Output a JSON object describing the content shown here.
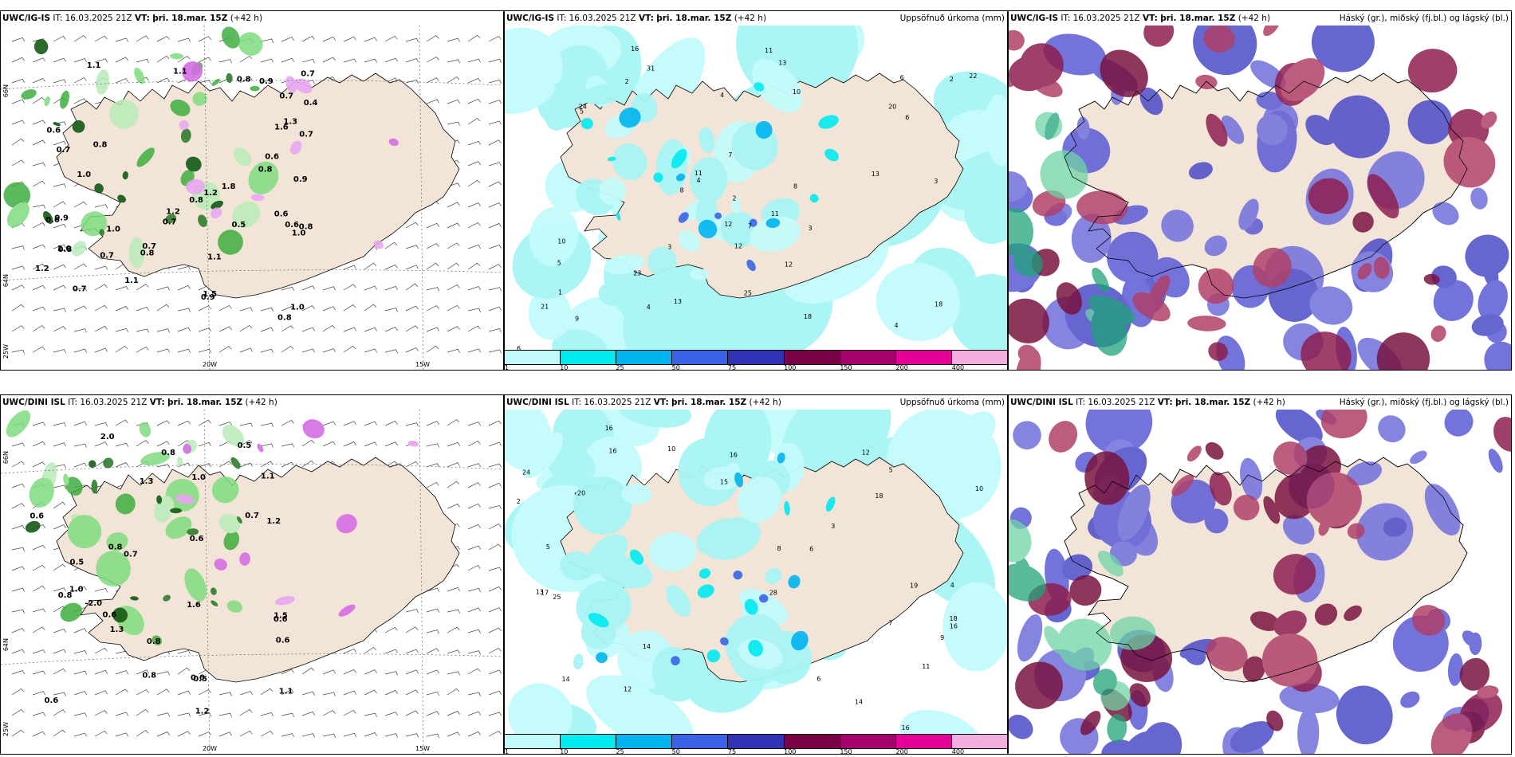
{
  "rows": [
    {
      "model": "UWC/IG-IS",
      "it_label": "IT:",
      "it_value": "16.03.2025 21Z",
      "vt_label": "VT:",
      "vt_value": "þri. 18.mar. 15Z",
      "lead": "(+42 h)",
      "lat_top": "66N",
      "lat_bottom": "64N",
      "lat_bot2": "25W",
      "lon_a": "20W",
      "lon_b": "15W",
      "precip_labels": [
        "0.8",
        "0.8",
        "0.6",
        "1.1",
        "0.6",
        "0.9",
        "0.8",
        "1.0",
        "0.7",
        "1.1",
        "1.1",
        "1.2",
        "1.2",
        "0.7",
        "0.6",
        "0.7",
        "0.8",
        "0.6",
        "1.0",
        "0.6",
        "0.7",
        "0.9",
        "1.0",
        "0.5",
        "0.4",
        "0.8",
        "1.6",
        "1.3",
        "0.9",
        "1.8",
        "1.0",
        "0.8",
        "1.2",
        "0.7",
        "0.7",
        "0.9",
        "1.1",
        "0.7",
        "0.8",
        "0.7",
        "1.5",
        "1.0",
        "0.8"
      ],
      "accum_labels": [
        "2",
        "3",
        "4",
        "4",
        "5",
        "5",
        "8",
        "4",
        "3",
        "2",
        "20",
        "31",
        "24",
        "22",
        "13",
        "13",
        "9",
        "6",
        "11",
        "18",
        "10",
        "11",
        "13",
        "7",
        "12",
        "18",
        "23",
        "21",
        "8",
        "6",
        "11",
        "12",
        "25",
        "16",
        "12",
        "10",
        "7",
        "6",
        "2",
        "3",
        "1",
        "4"
      ]
    },
    {
      "model": "UWC/DINI ISL",
      "it_label": "IT:",
      "it_value": "16.03.2025 21Z",
      "vt_label": "VT:",
      "vt_value": "þri. 18.mar. 15Z",
      "lead": "(+42 h)",
      "lat_top": "66N",
      "lat_bottom": "64N",
      "lat_bot2": "25W",
      "lon_a": "20W",
      "lon_b": "15W",
      "precip_labels": [
        "0.5",
        "0.6",
        "0.6",
        "0.8",
        "0.5",
        "-2.0",
        "0.6",
        "0.6",
        "1.0",
        "0.7",
        "0.6",
        "0.5",
        "1.2",
        "0.8",
        "0.7",
        "1.2",
        "0.8",
        "2.0",
        "1.5",
        "0.8",
        "1.1",
        "0.6",
        "1.0",
        "1.3",
        "1.6",
        "1.3",
        "0.8",
        "1.1",
        "0.6"
      ],
      "accum_labels": [
        "3",
        "6",
        "5",
        "6",
        "4",
        "8",
        "9",
        "10",
        "16",
        "19",
        "20",
        "17",
        "18",
        "14",
        "16",
        "24",
        "25",
        "12",
        "18",
        "28",
        "12",
        "16",
        "15",
        "14",
        "13",
        "14",
        "16",
        "16",
        "11",
        "10",
        "7",
        "5",
        "2"
      ]
    }
  ],
  "accum_title": "Uppsöfnuð úrkoma (mm)",
  "cloud_title": "Háský (gr.), miðský (fj.bl.) og lágský (bl.)",
  "scale": {
    "ticks": [
      "1",
      "10",
      "25",
      "50",
      "75",
      "100",
      "150",
      "200",
      "400"
    ],
    "colors": [
      "#c2fbfb",
      "#00eaf2",
      "#00b4f0",
      "#3a63e8",
      "#3232b6",
      "#7a0046",
      "#a5006e",
      "#e6009a",
      "#f3aee0"
    ]
  },
  "colors": {
    "land": "#f2e4d6",
    "precip_green": "#7fdc7f",
    "precip_dark": "#145a14",
    "snow_purple": "#d66ee6",
    "accum_cyan": "#a8f5f5",
    "cloud_high": "#7a1440",
    "cloud_mid": "#4b4bc8",
    "cloud_low": "#1fa37a"
  }
}
